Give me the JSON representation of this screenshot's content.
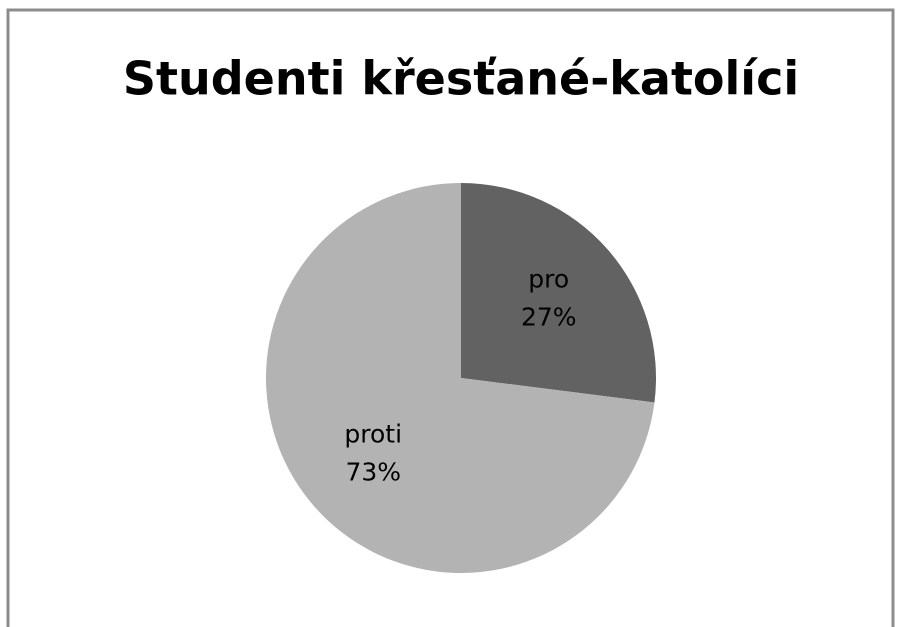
{
  "chart_data": {
    "type": "pie",
    "title": "Studenti křesťané-katolíci",
    "categories": [
      "pro",
      "proti"
    ],
    "values": [
      27,
      73
    ],
    "value_labels": [
      "27%",
      "73%"
    ],
    "colors": [
      "#626262",
      "#b3b3b3"
    ]
  }
}
